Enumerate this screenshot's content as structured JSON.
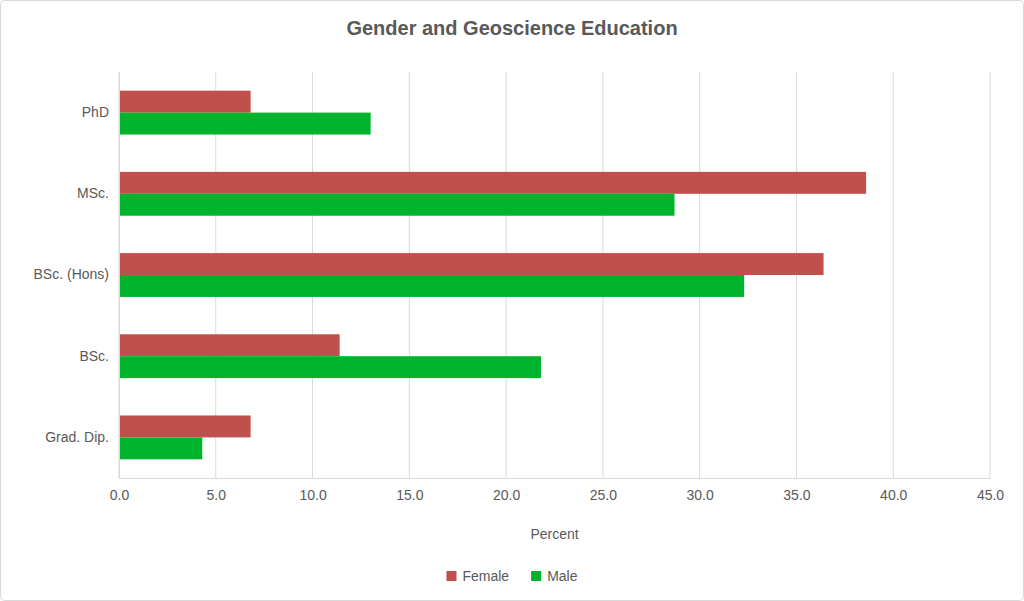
{
  "chart_data": {
    "type": "bar",
    "orientation": "horizontal",
    "title": "Gender and Geoscience Education",
    "x_label": "Percent",
    "categories": [
      "PhD",
      "MSc.",
      "BSc. (Hons)",
      "BSc.",
      "Grad. Dip."
    ],
    "series": [
      {
        "name": "Female",
        "color": "#c0504d",
        "values": [
          6.8,
          38.6,
          36.4,
          11.4,
          6.8
        ]
      },
      {
        "name": "Male",
        "color": "#00b32c",
        "values": [
          13.0,
          28.7,
          32.3,
          21.8,
          4.3
        ]
      }
    ],
    "xlim": [
      0,
      45
    ],
    "xticks": [
      {
        "value": 0,
        "label": "0.0"
      },
      {
        "value": 5,
        "label": "5.0"
      },
      {
        "value": 10,
        "label": "10.0"
      },
      {
        "value": 15,
        "label": "15.0"
      },
      {
        "value": 20,
        "label": "20.0"
      },
      {
        "value": 25,
        "label": "25.0"
      },
      {
        "value": 30,
        "label": "30.0"
      },
      {
        "value": 35,
        "label": "35.0"
      },
      {
        "value": 40,
        "label": "40.0"
      },
      {
        "value": 45,
        "label": "45.0"
      }
    ],
    "grid": true,
    "legend": "bottom"
  }
}
